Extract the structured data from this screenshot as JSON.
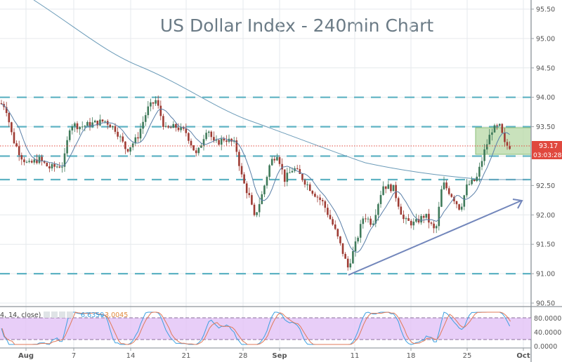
{
  "header": {
    "title": "US Dollar Index - 240min Chart"
  },
  "price_axis": {
    "ticks": [
      "95.50",
      "95.00",
      "94.50",
      "94.00",
      "93.50",
      "93.00",
      "92.50",
      "92.00",
      "91.50",
      "91.00",
      "90.50"
    ],
    "last_price_label": "93.17",
    "countdown_label": "03:03:28",
    "last_price_color": "#e0483e"
  },
  "time_axis": {
    "ticks": [
      "Aug",
      "7",
      "14",
      "21",
      "28",
      "Sep",
      "11",
      "18",
      "25",
      "Oct"
    ]
  },
  "indicator": {
    "legend_text": "4, 14, close)",
    "value_k": "6.6359",
    "value_d": "3.0045",
    "k_color": "#3ca0e0",
    "d_color": "#e08a3c",
    "ticks": [
      "80.0000",
      "40.0000",
      "0.0000"
    ],
    "band_color": "#e4c6f7"
  },
  "colors": {
    "up_candle": "#3f7a5a",
    "down_candle": "#9e3b33",
    "level_lines": "#5fb3c3",
    "ma_line": "#6b8ba8",
    "trendline": "#7286bb",
    "highlight_box": "#b7d8a5"
  },
  "chart_data": {
    "type": "candlestick",
    "title": "US Dollar Index - 240min Chart",
    "xlabel": "",
    "ylabel": "",
    "ylim": [
      90.5,
      95.6
    ],
    "grid": true,
    "x_tick_labels": [
      "Aug",
      "7",
      "14",
      "21",
      "28",
      "Sep",
      "11",
      "18",
      "25",
      "Oct"
    ],
    "horizontal_levels": [
      94.0,
      93.5,
      93.0,
      92.6,
      91.0
    ],
    "last_price": 93.17,
    "approx_close_path": [
      {
        "x": "Jul 31",
        "close": 93.8
      },
      {
        "x": "Aug 2",
        "close": 93.0
      },
      {
        "x": "Aug 4",
        "close": 92.85
      },
      {
        "x": "Aug 7",
        "close": 93.55
      },
      {
        "x": "Aug 9",
        "close": 93.6
      },
      {
        "x": "Aug 11",
        "close": 93.1
      },
      {
        "x": "Aug 14",
        "close": 93.5
      },
      {
        "x": "Aug 16",
        "close": 93.9
      },
      {
        "x": "Aug 18",
        "close": 93.45
      },
      {
        "x": "Aug 21",
        "close": 93.4
      },
      {
        "x": "Aug 23",
        "close": 93.0
      },
      {
        "x": "Aug 25",
        "close": 93.25
      },
      {
        "x": "Aug 28",
        "close": 92.6
      },
      {
        "x": "Aug 29",
        "close": 91.9
      },
      {
        "x": "Aug 31",
        "close": 92.6
      },
      {
        "x": "Sep 1",
        "close": 92.9
      },
      {
        "x": "Sep 4",
        "close": 92.6
      },
      {
        "x": "Sep 6",
        "close": 92.3
      },
      {
        "x": "Sep 8",
        "close": 91.35
      },
      {
        "x": "Sep 10",
        "close": 91.1
      },
      {
        "x": "Sep 12",
        "close": 91.8
      },
      {
        "x": "Sep 14",
        "close": 92.3
      },
      {
        "x": "Sep 15",
        "close": 92.4
      },
      {
        "x": "Sep 18",
        "close": 92.0
      },
      {
        "x": "Sep 20",
        "close": 91.8
      },
      {
        "x": "Sep 21",
        "close": 92.55
      },
      {
        "x": "Sep 22",
        "close": 92.2
      },
      {
        "x": "Sep 25",
        "close": 92.6
      },
      {
        "x": "Sep 26",
        "close": 93.2
      },
      {
        "x": "Sep 28",
        "close": 93.5
      },
      {
        "x": "Sep 29",
        "close": 93.17
      }
    ],
    "moving_average_slow": [
      {
        "x": "Jul 31",
        "y": 95.7
      },
      {
        "x": "Aug 14",
        "y": 94.7
      },
      {
        "x": "Aug 28",
        "y": 93.7
      },
      {
        "x": "Sep 11",
        "y": 92.95
      },
      {
        "x": "Sep 25",
        "y": 92.6
      },
      {
        "x": "Oct 1",
        "y": 92.6
      }
    ],
    "trendline": {
      "from": {
        "x": "Sep 11",
        "y": 90.97
      },
      "to": {
        "x": "Oct 1",
        "y": 92.3
      }
    },
    "highlight_zone": {
      "x_from": "Sep 27",
      "x_to": "Oct 1",
      "y_from": 93.0,
      "y_to": 93.47
    },
    "stochastic": {
      "params": "14, 14, close",
      "k": 6.6359,
      "d": 3.0045,
      "upper": 80,
      "lower": 20,
      "ylim": [
        0,
        100
      ]
    }
  }
}
